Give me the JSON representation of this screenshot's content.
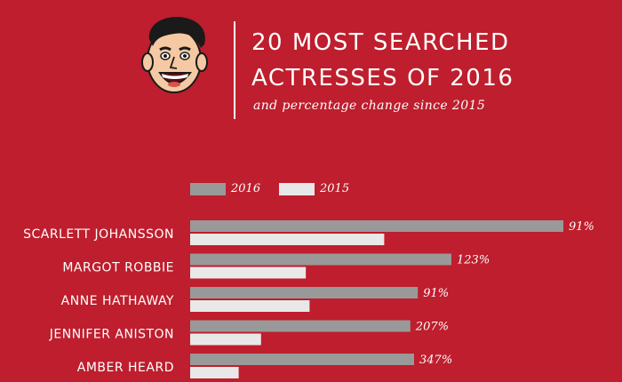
{
  "header": {
    "title_line1": "20 MOST SEARCHED",
    "title_line2": "ACTRESSES OF 2016",
    "subtitle": "and percentage change since 2015"
  },
  "colors": {
    "background": "#be1e2d",
    "series_2016": "#999999",
    "series_2015": "#e8e8e8",
    "text": "#ffffff"
  },
  "chart_data": {
    "type": "bar",
    "orientation": "horizontal",
    "title": "20 MOST SEARCHED ACTRESSES OF 2016",
    "subtitle": "and percentage change since 2015",
    "legend": "top-left",
    "grid": false,
    "categories": [
      "SCARLETT JOHANSSON",
      "MARGOT ROBBIE",
      "ANNE HATHAWAY",
      "JENNIFER ANISTON",
      "AMBER HEARD"
    ],
    "series": [
      {
        "name": "2016",
        "color": "#999999",
        "values": [
          100,
          70,
          61,
          59,
          60
        ]
      },
      {
        "name": "2015",
        "color": "#e8e8e8",
        "values": [
          52,
          31,
          32,
          19,
          13
        ]
      }
    ],
    "data_labels": [
      "91%",
      "123%",
      "91%",
      "207%",
      "347%"
    ],
    "xlim": [
      0,
      100
    ]
  }
}
